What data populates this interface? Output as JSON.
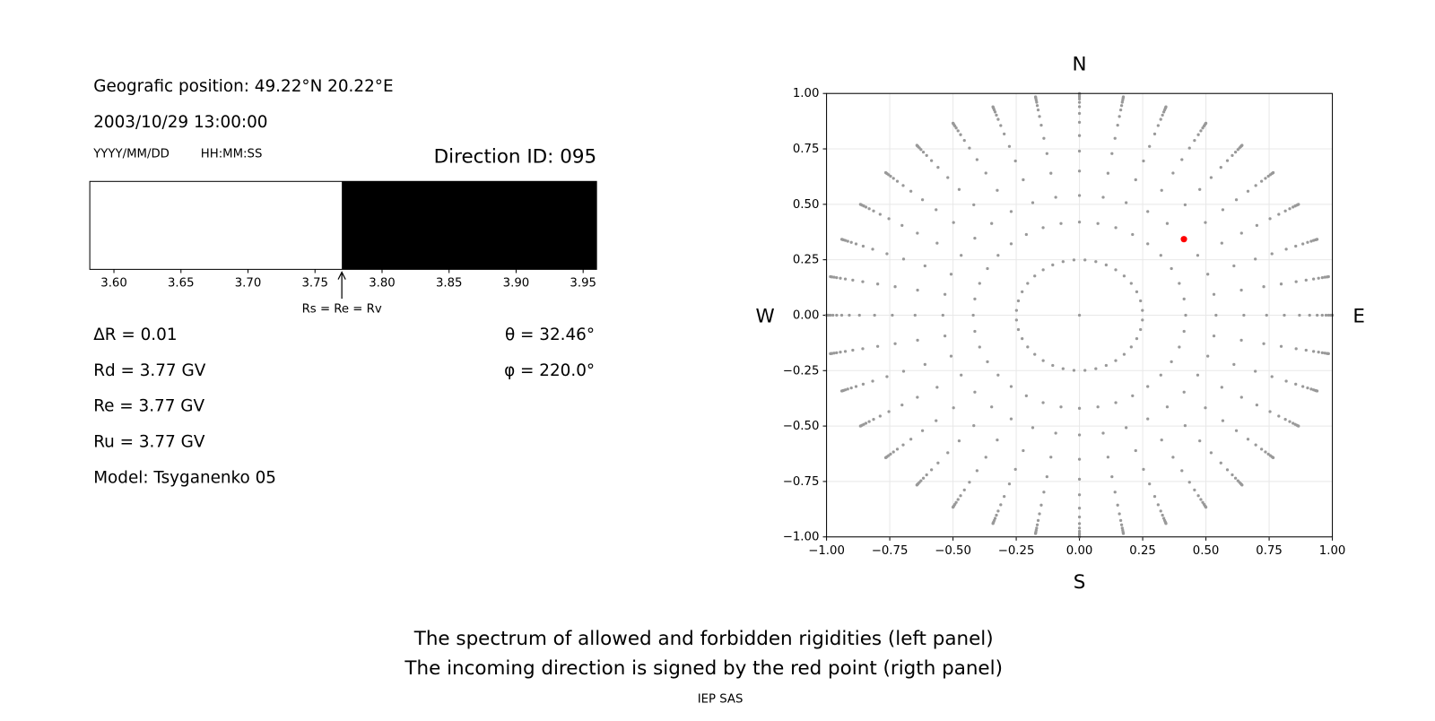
{
  "panel_info": {
    "position": "Geografic position: 49.22°N 20.22°E",
    "datetime": "2003/10/29 13:00:00",
    "date_format": "YYYY/MM/DD",
    "time_format": "HH:MM:SS",
    "direction_id": "Direction ID: 095",
    "delta_r": "ΔR = 0.01",
    "theta": "θ = 32.46°",
    "phi": "φ = 220.0°",
    "rd": "Rd = 3.77 GV",
    "re": "Re = 3.77 GV",
    "ru": "Ru = 3.77 GV",
    "model": "Model: Tsyganenko 05",
    "caption_1": "The spectrum of allowed and forbidden rigidities (left panel)",
    "caption_2": "The incoming direction is signed by the red point (rigth panel)",
    "credit": "IEP SAS"
  },
  "chart_data": [
    {
      "type": "spectrum",
      "xlim": [
        3.582,
        3.96
      ],
      "xticks": [
        {
          "value": 3.6,
          "label": "3.60"
        },
        {
          "value": 3.65,
          "label": "3.65"
        },
        {
          "value": 3.7,
          "label": "3.70"
        },
        {
          "value": 3.75,
          "label": "3.75"
        },
        {
          "value": 3.8,
          "label": "3.80"
        },
        {
          "value": 3.85,
          "label": "3.85"
        },
        {
          "value": 3.9,
          "label": "3.90"
        },
        {
          "value": 3.95,
          "label": "3.95"
        }
      ],
      "segments": [
        {
          "start": 3.582,
          "end": 3.77,
          "color": "#ffffff"
        },
        {
          "start": 3.77,
          "end": 3.96,
          "color": "#000000"
        }
      ],
      "annotation": {
        "text": "Rs = Re = Rv",
        "x": 3.77
      }
    },
    {
      "type": "polar-scatter",
      "xlim": [
        -1,
        1
      ],
      "ylim": [
        -1,
        1
      ],
      "xticks": [
        {
          "value": -1,
          "label": "−1.00"
        },
        {
          "value": -0.75,
          "label": "−0.75"
        },
        {
          "value": -0.5,
          "label": "−0.50"
        },
        {
          "value": -0.25,
          "label": "−0.25"
        },
        {
          "value": 0,
          "label": "0.00"
        },
        {
          "value": 0.25,
          "label": "0.25"
        },
        {
          "value": 0.5,
          "label": "0.50"
        },
        {
          "value": 0.75,
          "label": "0.75"
        },
        {
          "value": 1,
          "label": "1.00"
        }
      ],
      "yticks": [
        {
          "value": -1,
          "label": "−1.00"
        },
        {
          "value": -0.75,
          "label": "−0.75"
        },
        {
          "value": -0.5,
          "label": "−0.50"
        },
        {
          "value": -0.25,
          "label": "−0.25"
        },
        {
          "value": 0,
          "label": "0.00"
        },
        {
          "value": 0.25,
          "label": "0.25"
        },
        {
          "value": 0.5,
          "label": "0.50"
        },
        {
          "value": 0.75,
          "label": "0.75"
        },
        {
          "value": 1,
          "label": "1.00"
        }
      ],
      "grid": true,
      "compass": {
        "north": "N",
        "south": "S",
        "east": "E",
        "west": "W"
      },
      "grid_color": "#999999",
      "spoke_azimuths": [
        0,
        10,
        20,
        30,
        40,
        50,
        60,
        70,
        80,
        90,
        100,
        110,
        120,
        130,
        140,
        150,
        160,
        170,
        180,
        190,
        200,
        210,
        220,
        230,
        240,
        250,
        260,
        270,
        280,
        290,
        300,
        310,
        320,
        330,
        340,
        350
      ],
      "spoke_radii": [
        0.42,
        0.54,
        0.65,
        0.74,
        0.81,
        0.87,
        0.91,
        0.94,
        0.96,
        0.975,
        0.985,
        0.993,
        0.998,
        1.0
      ],
      "inner_ring": {
        "radius": 0.25,
        "azimuths": [
          5,
          15,
          25,
          35,
          45,
          55,
          65,
          75,
          85,
          95,
          105,
          115,
          125,
          135,
          145,
          155,
          165,
          175,
          185,
          195,
          205,
          215,
          225,
          235,
          245,
          255,
          265,
          275,
          285,
          295,
          305,
          315,
          325,
          335,
          345,
          355
        ]
      },
      "center_point": {
        "x": 0,
        "y": 0
      },
      "direction_point": {
        "x": 0.413,
        "y": 0.343,
        "color": "#ff0000"
      }
    }
  ]
}
